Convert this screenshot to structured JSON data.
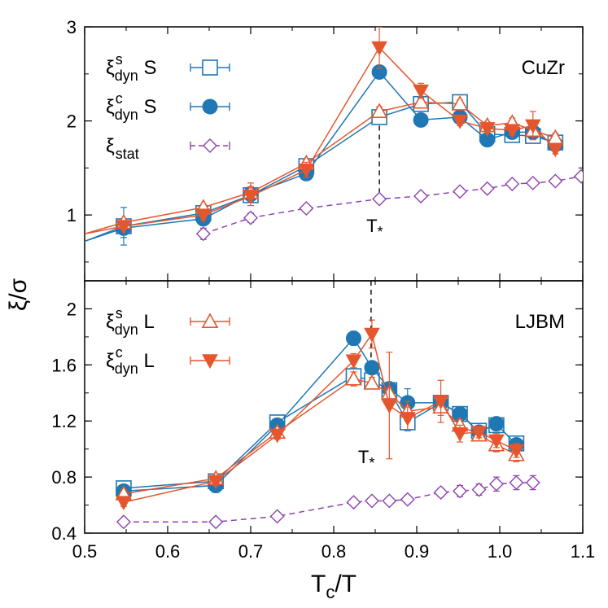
{
  "colors": {
    "blue": "#1f77b4",
    "orange": "#e4572e",
    "purple": "#8e44ad"
  },
  "chart_data": [
    {
      "type": "line",
      "panel": "top",
      "label": "CuZr",
      "ylim": [
        0.3,
        3.0
      ],
      "xlim": [
        0.5,
        1.1
      ],
      "y_ticks": [
        1,
        2,
        3
      ],
      "grid": false,
      "legend_position": "top-left",
      "annotation": {
        "text": "T*",
        "x": 0.855
      },
      "series": [
        {
          "name": "ξ^s_dyn S",
          "marker": "open-square",
          "color": "#1f77b4",
          "dashed": false,
          "x": [
            0.5,
            0.547,
            0.643,
            0.7,
            0.767,
            0.855,
            0.905,
            0.952,
            0.985,
            1.015,
            1.04,
            1.067
          ],
          "y": [
            0.72,
            0.88,
            1.02,
            1.21,
            1.52,
            2.04,
            2.18,
            2.2,
            1.86,
            1.85,
            1.84,
            1.77
          ],
          "err": [
            0,
            0.2,
            0.03,
            0.07,
            0.06,
            0.05,
            0.05,
            0.04,
            0.05,
            0.05,
            0.05,
            0.05
          ]
        },
        {
          "name": "ξ^c_dyn S",
          "marker": "filled-circle",
          "color": "#1f77b4",
          "dashed": false,
          "x": [
            0.5,
            0.547,
            0.643,
            0.7,
            0.767,
            0.855,
            0.905,
            0.952,
            0.985,
            1.015,
            1.04,
            1.067
          ],
          "y": [
            0.72,
            0.86,
            0.96,
            1.22,
            1.44,
            2.52,
            2.01,
            2.04,
            1.8,
            1.88,
            1.88,
            1.75
          ],
          "err": [
            0,
            0.1,
            0.03,
            0.07,
            0.06,
            0.05,
            0.04,
            0.04,
            0.04,
            0.05,
            0.05,
            0.05
          ]
        },
        {
          "name": "ξ^s_dyn L",
          "marker": "open-triangle",
          "color": "#e4572e",
          "dashed": false,
          "x": [
            0.5,
            0.547,
            0.643,
            0.7,
            0.767,
            0.855,
            0.905,
            0.952,
            0.985,
            1.015,
            1.04,
            1.067
          ],
          "y": [
            0.8,
            0.92,
            1.08,
            1.24,
            1.55,
            2.1,
            2.2,
            2.18,
            1.95,
            1.98,
            1.9,
            1.82
          ],
          "err": [
            0,
            0.03,
            0.03,
            0.1,
            0.04,
            0.05,
            0.05,
            0.04,
            0.04,
            0.05,
            0.05,
            0.05
          ]
        },
        {
          "name": "ξ^c_dyn L",
          "marker": "filled-triangle-down",
          "color": "#e4572e",
          "dashed": false,
          "x": [
            0.5,
            0.547,
            0.643,
            0.7,
            0.767,
            0.855,
            0.905,
            0.952,
            0.985,
            1.015,
            1.04,
            1.067
          ],
          "y": [
            0.8,
            0.88,
            1.0,
            1.2,
            1.48,
            2.78,
            2.32,
            2.0,
            1.92,
            1.9,
            1.95,
            1.7
          ],
          "err": [
            0,
            0.03,
            0.05,
            0.1,
            0.08,
            0.22,
            0.08,
            0.05,
            0.05,
            0.05,
            0.15,
            0.05
          ]
        },
        {
          "name": "ξ_stat",
          "marker": "open-diamond",
          "color": "#8e44ad",
          "dashed": true,
          "x": [
            0.643,
            0.7,
            0.767,
            0.855,
            0.905,
            0.952,
            0.985,
            1.015,
            1.04,
            1.067,
            1.098
          ],
          "y": [
            0.8,
            0.97,
            1.07,
            1.17,
            1.2,
            1.25,
            1.28,
            1.33,
            1.34,
            1.36,
            1.41
          ],
          "err": [
            0.06,
            0.05,
            0.02,
            0.02,
            0.02,
            0.02,
            0.02,
            0.03,
            0.03,
            0.03,
            0.02
          ]
        }
      ]
    },
    {
      "type": "line",
      "panel": "bottom",
      "label": "LJBM",
      "ylim": [
        0.4,
        2.2
      ],
      "xlim": [
        0.5,
        1.1
      ],
      "y_ticks": [
        0.4,
        0.8,
        1.2,
        1.6,
        2
      ],
      "x_ticks": [
        0.5,
        0.6,
        0.7,
        0.8,
        0.9,
        1.0,
        1.1
      ],
      "xlabel": "T_c/T",
      "grid": false,
      "legend_position": "top-left",
      "annotation": {
        "text": "T*",
        "x": 0.845
      },
      "series": [
        {
          "name": "ξ^s_dyn S",
          "marker": "open-square",
          "color": "#1f77b4",
          "dashed": false,
          "x": [
            0.547,
            0.658,
            0.732,
            0.824,
            0.846,
            0.867,
            0.889,
            0.929,
            0.952,
            0.975,
            0.996,
            1.02
          ],
          "y": [
            0.72,
            0.77,
            1.19,
            1.52,
            1.49,
            1.42,
            1.19,
            1.33,
            1.25,
            1.13,
            1.17,
            1.04
          ],
          "err": [
            0.02,
            0.03,
            0.03,
            0.04,
            0.04,
            0.04,
            0.06,
            0.04,
            0.03,
            0.03,
            0.03,
            0.03
          ]
        },
        {
          "name": "ξ^c_dyn S",
          "marker": "filled-circle",
          "color": "#1f77b4",
          "dashed": false,
          "x": [
            0.547,
            0.658,
            0.732,
            0.824,
            0.846,
            0.867,
            0.889,
            0.929,
            0.952,
            0.975,
            0.996,
            1.02
          ],
          "y": [
            0.7,
            0.74,
            1.17,
            1.79,
            1.58,
            1.43,
            1.33,
            1.33,
            1.25,
            1.12,
            1.18,
            1.03
          ],
          "err": [
            0.03,
            0.05,
            0.04,
            0.05,
            0.04,
            0.04,
            0.1,
            0.05,
            0.03,
            0.03,
            0.03,
            0.03
          ]
        },
        {
          "name": "ξ^s_dyn L",
          "marker": "open-triangle",
          "color": "#e4572e",
          "dashed": false,
          "x": [
            0.547,
            0.658,
            0.732,
            0.824,
            0.846,
            0.867,
            0.889,
            0.929,
            0.952,
            0.975,
            0.996,
            1.02
          ],
          "y": [
            0.68,
            0.79,
            1.12,
            1.5,
            1.47,
            1.4,
            1.27,
            1.3,
            1.17,
            1.1,
            1.03,
            0.96
          ],
          "err": [
            0.03,
            0.03,
            0.03,
            0.05,
            0.04,
            0.04,
            0.07,
            0.06,
            0.04,
            0.04,
            0.05,
            0.05
          ]
        },
        {
          "name": "ξ^c_dyn L",
          "marker": "filled-triangle-down",
          "color": "#e4572e",
          "dashed": false,
          "x": [
            0.547,
            0.658,
            0.732,
            0.824,
            0.846,
            0.867,
            0.889,
            0.929,
            0.952,
            0.975,
            0.996,
            1.02
          ],
          "y": [
            0.62,
            0.77,
            1.1,
            1.63,
            1.82,
            1.31,
            1.22,
            1.34,
            1.11,
            1.12,
            1.06,
            0.99
          ],
          "err": [
            0.03,
            0.03,
            0.03,
            0.05,
            0.1,
            0.38,
            0.08,
            0.15,
            0.06,
            0.04,
            0.05,
            0.05
          ]
        },
        {
          "name": "ξ_stat",
          "marker": "open-diamond",
          "color": "#8e44ad",
          "dashed": true,
          "x": [
            0.547,
            0.658,
            0.732,
            0.824,
            0.846,
            0.867,
            0.889,
            0.929,
            0.952,
            0.975,
            0.996,
            1.02,
            1.04
          ],
          "y": [
            0.48,
            0.48,
            0.52,
            0.62,
            0.63,
            0.63,
            0.64,
            0.69,
            0.7,
            0.71,
            0.75,
            0.76,
            0.76
          ],
          "err": [
            0.01,
            0.01,
            0.01,
            0.02,
            0.02,
            0.02,
            0.03,
            0.03,
            0.04,
            0.04,
            0.05,
            0.05,
            0.05
          ]
        }
      ]
    }
  ],
  "y_axis_label": "ξ/σ",
  "legend_top": [
    {
      "sym": "ξ",
      "sup": "s",
      "sub": "dyn",
      "suffix": " S",
      "marker": "open-square",
      "color": "#1f77b4"
    },
    {
      "sym": "ξ",
      "sup": "c",
      "sub": "dyn",
      "suffix": " S",
      "marker": "filled-circle",
      "color": "#1f77b4"
    },
    {
      "sym": "ξ",
      "sup": "",
      "sub": "stat",
      "suffix": "",
      "marker": "open-diamond",
      "color": "#8e44ad"
    }
  ],
  "legend_bottom": [
    {
      "sym": "ξ",
      "sup": "s",
      "sub": "dyn",
      "suffix": " L",
      "marker": "open-triangle",
      "color": "#e4572e"
    },
    {
      "sym": "ξ",
      "sup": "c",
      "sub": "dyn",
      "suffix": " L",
      "marker": "filled-triangle-down",
      "color": "#e4572e"
    }
  ]
}
